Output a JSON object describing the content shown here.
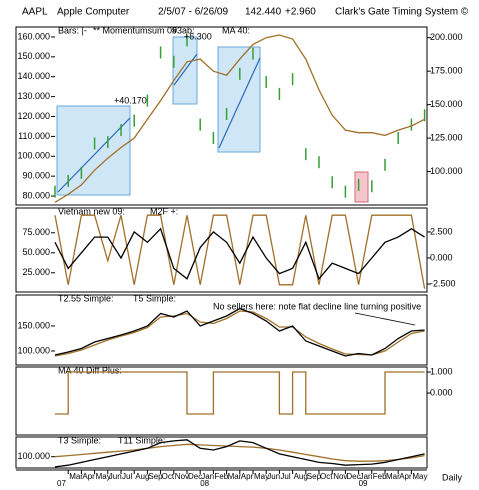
{
  "header": {
    "symbol": "AAPL",
    "name": "Apple Computer",
    "range": "2/5/07 - 6/26/09",
    "last": "142.440",
    "change": "+2.960",
    "system": "Clark's Gate Timing System ©"
  },
  "chart_data": [
    {
      "type": "line",
      "legend_texts": [
        "** Momentumsum 09",
        "#3ab:"
      ],
      "annotations": [
        "+40.170",
        "+6.300"
      ],
      "ylim": [
        75.5,
        165
      ],
      "yticks": [
        {
          "value": 160,
          "label": "160.000"
        },
        {
          "value": 150,
          "label": "150.000"
        },
        {
          "value": 140,
          "label": "140.000"
        },
        {
          "value": 130,
          "label": "130.000"
        },
        {
          "value": 120,
          "label": "120.000"
        },
        {
          "value": 110,
          "label": "110.000"
        },
        {
          "value": 100,
          "label": "100.000"
        },
        {
          "value": 90,
          "label": "90.000"
        },
        {
          "value": 80,
          "label": "80.000"
        }
      ],
      "y2lim": [
        75,
        208
      ],
      "y2ticks": [
        {
          "value": 200,
          "label": "200.000"
        },
        {
          "value": 175,
          "label": "175.000"
        },
        {
          "value": 150,
          "label": "150.000"
        },
        {
          "value": 125,
          "label": "125.000"
        },
        {
          "value": 100,
          "label": "100.000"
        }
      ],
      "series": [
        {
          "name": "Bars: |-",
          "color": "#33a033",
          "style": "ticks",
          "axis": "y2",
          "values": [
            85,
            93,
            99,
            121,
            122,
            131,
            138,
            153,
            189,
            182,
            198,
            135,
            125,
            143,
            173,
            188,
            167,
            158,
            169,
            113,
            107,
            92,
            85,
            90,
            89,
            105,
            125,
            135,
            142
          ]
        },
        {
          "name": "MA 40:",
          "color": "#a0702a",
          "style": "line",
          "axis": "y2",
          "values": [
            77,
            83,
            90,
            101,
            110,
            118,
            125,
            139,
            153,
            168,
            182,
            184,
            175,
            172,
            184,
            195,
            200,
            202,
            199,
            184,
            161,
            142,
            131,
            129,
            129,
            127,
            131,
            134,
            139
          ]
        }
      ]
    },
    {
      "type": "line",
      "ylim": [
        1,
        106
      ],
      "yticks": [
        {
          "value": 75,
          "label": "75.000"
        },
        {
          "value": 50,
          "label": "50.000"
        },
        {
          "value": 25,
          "label": "25.000"
        }
      ],
      "y2lim": [
        -3.27,
        4.8
      ],
      "y2ticks": [
        {
          "value": 2.5,
          "label": "2.500"
        },
        {
          "value": 0,
          "label": "0.000"
        },
        {
          "value": -2.5,
          "label": "-2.500"
        }
      ],
      "series": [
        {
          "name": "Vietnam new 09:",
          "color": "#a0702a",
          "style": "line",
          "values": [
            97,
            10,
            97,
            97,
            40,
            97,
            10,
            97,
            97,
            10,
            97,
            10,
            97,
            97,
            10,
            97,
            97,
            10,
            10,
            97,
            10,
            97,
            97,
            10,
            97,
            97,
            97,
            97,
            5
          ]
        },
        {
          "name": "M2F +:",
          "color": "#000000",
          "style": "line",
          "axis": "y2",
          "values": [
            1.5,
            -1,
            0.5,
            2,
            2,
            0,
            2.5,
            1.5,
            2.8,
            -1,
            -2,
            1,
            2.5,
            1.5,
            -0.5,
            2,
            0,
            -1.5,
            -1,
            1.5,
            -2,
            -0.5,
            -1,
            -1.5,
            0,
            1.5,
            2,
            2.8,
            2
          ]
        }
      ]
    },
    {
      "type": "line",
      "annotations": [
        "No sellers here: note flat decline line turning positive"
      ],
      "ylim": [
        72,
        212
      ],
      "yticks": [
        {
          "value": 150,
          "label": "150.000"
        },
        {
          "value": 100,
          "label": "100.000"
        }
      ],
      "series": [
        {
          "name": "T2.55 Simple:",
          "color": "#a0702a",
          "style": "line",
          "values": [
            90,
            95,
            102,
            112,
            122,
            130,
            137,
            147,
            168,
            170,
            175,
            158,
            155,
            165,
            180,
            178,
            165,
            148,
            148,
            128,
            115,
            104,
            94,
            93,
            92,
            100,
            118,
            135,
            140
          ]
        },
        {
          "name": "T5 Simple:",
          "color": "#000000",
          "style": "line",
          "values": [
            92,
            98,
            105,
            118,
            125,
            132,
            140,
            150,
            175,
            168,
            180,
            150,
            160,
            170,
            185,
            175,
            160,
            140,
            150,
            120,
            110,
            100,
            90,
            95,
            92,
            105,
            125,
            140,
            142
          ]
        }
      ]
    },
    {
      "type": "line",
      "ylim": [
        -2,
        1.24
      ],
      "y2ticks": [
        {
          "value": 1,
          "label": "1.000"
        },
        {
          "value": 0,
          "label": "0.000"
        }
      ],
      "series": [
        {
          "name": "MA 40 Diff Plus:",
          "color": "#a0702a",
          "style": "step",
          "values": [
            -1,
            1,
            1,
            1,
            1,
            1,
            1,
            1,
            1,
            1,
            -1,
            -1,
            1,
            1,
            1,
            1,
            1,
            -1,
            1,
            -1,
            -1,
            -1,
            -1,
            -1,
            -1,
            1,
            1,
            1,
            1
          ]
        }
      ]
    },
    {
      "type": "line",
      "ylim": [
        80,
        135
      ],
      "yticks": [
        {
          "value": 100,
          "label": "100.000"
        }
      ],
      "categories": [
        null,
        "Mar",
        "Apr",
        "May",
        "Jun",
        "Jul",
        "Aug",
        "Sep",
        "Oct",
        "Nov",
        "Dec",
        "Jan",
        "Feb",
        "Mar",
        "Apr",
        "May",
        "Jun",
        "Jul",
        "Aug",
        "Sep",
        "Oct",
        "Nov",
        "Dec",
        "Jan",
        "Feb",
        "Mar",
        "Apr",
        "May",
        null
      ],
      "years": [
        "07",
        "08",
        "09"
      ],
      "frequency": "Daily",
      "series": [
        {
          "name": "T3 Simple:",
          "color": "#a0702a",
          "style": "line",
          "values": [
            100,
            102,
            104,
            106,
            108,
            110,
            112,
            115,
            118,
            120,
            122,
            121,
            120,
            119,
            118,
            117,
            115,
            112,
            108,
            104,
            100,
            96,
            93,
            92,
            92,
            93,
            95,
            98,
            102
          ]
        },
        {
          "name": "T11 Simple:",
          "color": "#000000",
          "style": "line",
          "values": [
            82,
            85,
            90,
            95,
            100,
            105,
            110,
            115,
            125,
            128,
            130,
            115,
            112,
            118,
            128,
            125,
            115,
            105,
            100,
            95,
            90,
            88,
            85,
            86,
            87,
            90,
            95,
            100,
            105
          ]
        }
      ]
    }
  ]
}
